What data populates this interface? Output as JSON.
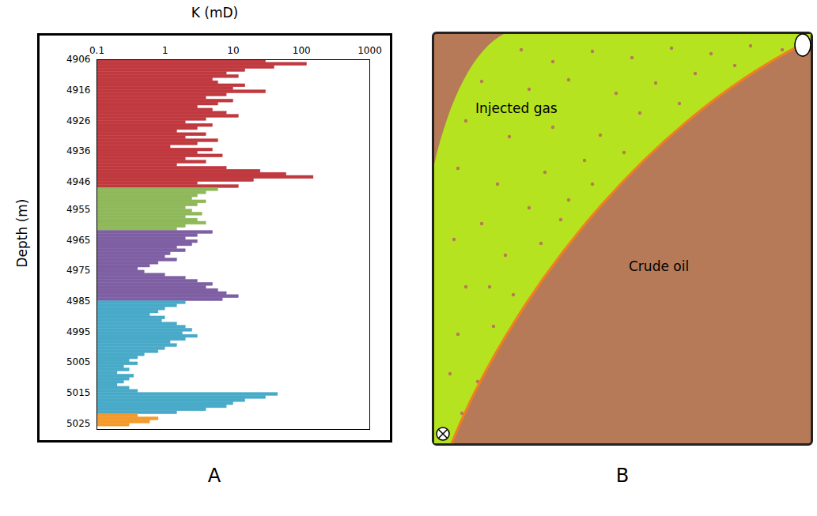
{
  "chart_data": {
    "type": "bar",
    "orientation": "horizontal",
    "log": "x",
    "grid": false,
    "panel_label": "A",
    "x_label": "K (mD)",
    "y_label": "Depth (m)",
    "xlim": [
      0.1,
      1000
    ],
    "xticks": [
      0.1,
      1,
      10,
      100,
      1000
    ],
    "ylim": [
      4906,
      5027
    ],
    "yticks": [
      4906,
      4916,
      4926,
      4936,
      4946,
      4955,
      4965,
      4975,
      4985,
      4995,
      5005,
      5015,
      5025
    ],
    "series": [
      {
        "color": "#c0393f",
        "y": [
          4906,
          4907,
          4908,
          4909,
          4910,
          4911,
          4912,
          4913,
          4914,
          4915,
          4916,
          4917,
          4918,
          4919,
          4920,
          4921,
          4922,
          4923,
          4924,
          4925,
          4926,
          4927,
          4928,
          4929,
          4930,
          4931,
          4932,
          4933,
          4934,
          4935,
          4936,
          4937,
          4938,
          4939,
          4940,
          4941,
          4942,
          4943,
          4944,
          4945,
          4946,
          4947
        ],
        "values": [
          30,
          120,
          40,
          15,
          8,
          12,
          5,
          6,
          15,
          10,
          30,
          8,
          4,
          10,
          6,
          3,
          5,
          8,
          12,
          4,
          2,
          5,
          3,
          1.5,
          4,
          2,
          6,
          3,
          1.2,
          5,
          3,
          7,
          2,
          4,
          1.5,
          8,
          25,
          60,
          150,
          20,
          3,
          12
        ]
      },
      {
        "color": "#8fb85a",
        "y": [
          4948,
          4949,
          4950,
          4951,
          4952,
          4953,
          4954,
          4955,
          4956,
          4957,
          4958,
          4959,
          4960,
          4961
        ],
        "values": [
          6,
          4,
          3,
          2.5,
          4,
          3,
          2,
          2.5,
          3.5,
          2,
          3,
          4,
          2,
          1.5
        ]
      },
      {
        "color": "#7e5fa3",
        "y": [
          4962,
          4963,
          4964,
          4965,
          4966,
          4967,
          4968,
          4969,
          4970,
          4971,
          4972,
          4973,
          4974,
          4975,
          4976,
          4977,
          4978,
          4979,
          4980,
          4981,
          4982,
          4983,
          4984
        ],
        "values": [
          5,
          3,
          2,
          3,
          2.5,
          1.5,
          2,
          1.2,
          1,
          1.5,
          0.8,
          0.6,
          0.4,
          0.5,
          1,
          2,
          3,
          5,
          4,
          6,
          8,
          12,
          7
        ]
      },
      {
        "color": "#48aac8",
        "y": [
          4985,
          4986,
          4987,
          4988,
          4989,
          4990,
          4991,
          4992,
          4993,
          4994,
          4995,
          4996,
          4997,
          4998,
          4999,
          5000,
          5001,
          5002,
          5003,
          5004,
          5005,
          5006,
          5007,
          5008,
          5009,
          5010,
          5011,
          5012,
          5013,
          5014,
          5015,
          5016,
          5017,
          5018,
          5019,
          5020,
          5021
        ],
        "values": [
          2,
          1.5,
          1,
          0.8,
          0.6,
          1,
          0.9,
          1.5,
          2,
          2.5,
          1.8,
          3,
          2,
          1.2,
          1.5,
          1,
          0.8,
          0.5,
          0.4,
          0.3,
          0.4,
          0.25,
          0.3,
          0.2,
          0.35,
          0.3,
          0.25,
          0.2,
          0.3,
          0.4,
          45,
          30,
          15,
          10,
          8,
          4,
          1.5
        ]
      },
      {
        "color": "#f39a2b",
        "y": [
          5022,
          5023,
          5024,
          5025
        ],
        "values": [
          0.4,
          0.8,
          0.6,
          0.3
        ]
      }
    ]
  },
  "diagram": {
    "panel_label": "B",
    "regions": [
      {
        "label": "Injected gas",
        "color": "#b6e31f"
      },
      {
        "label": "Crude oil",
        "color": "#b77a58"
      }
    ],
    "boundary_color": "#f07f20"
  }
}
